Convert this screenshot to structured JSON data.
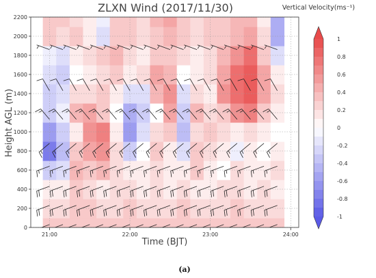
{
  "chart_data": {
    "type": "heatmap",
    "title": "ZLXN Wind (2017/11/30)",
    "colorbar_title": "Vertical Velocity(ms⁻¹)",
    "xlabel": "Time (BJT)",
    "ylabel": "Height AGL (m)",
    "caption": "(a)",
    "x_ticks": [
      "21:00",
      "22:00",
      "23:00",
      "24:00"
    ],
    "y_ticks": [
      "0",
      "200",
      "400",
      "600",
      "800",
      "1000",
      "1200",
      "1400",
      "1600",
      "1800",
      "2000",
      "2200"
    ],
    "xlim": [
      "20:46",
      "24:06"
    ],
    "ylim": [
      0,
      2200
    ],
    "colorbar_ticks": [
      "1",
      "0.8",
      "0.6",
      "0.4",
      "0.2",
      "0",
      "-0.2",
      "-0.4",
      "-0.6",
      "-0.8",
      "-1"
    ],
    "colorbar_range": [
      -1,
      1
    ],
    "grid": true,
    "colors": {
      "negative": "#5a5ae6",
      "neutral": "#ffffff",
      "positive": "#e84a4a"
    },
    "times": [
      "21:00",
      "21:10",
      "21:20",
      "21:30",
      "21:40",
      "21:50",
      "22:00",
      "22:10",
      "22:20",
      "22:30",
      "22:40",
      "22:50",
      "23:00",
      "23:10",
      "23:20",
      "23:30",
      "23:40",
      "23:50"
    ],
    "heights": [
      0,
      200,
      400,
      600,
      800,
      1000,
      1200,
      1400,
      1600,
      1800,
      2000,
      2200
    ],
    "vertical_velocity": [
      [
        0.3,
        0.3,
        0.3,
        0.3,
        0.3,
        0.3,
        0.3,
        0.3,
        0.3,
        0.3,
        0.3,
        0.3,
        0.3,
        0.3,
        0.3,
        0.3,
        0.3,
        0.3
      ],
      [
        0.2,
        0.2,
        0.3,
        0.3,
        0.2,
        0.2,
        0.3,
        0.2,
        0.2,
        0.2,
        0.3,
        0.2,
        0.2,
        0.2,
        0.3,
        0.2,
        0.2,
        0.2
      ],
      [
        0.1,
        0.1,
        0.3,
        0.2,
        0.1,
        0.2,
        0.2,
        0.1,
        0.2,
        0.1,
        0.2,
        0.1,
        0.1,
        0.2,
        0.2,
        0.1,
        0.2,
        0.1
      ],
      [
        -0.3,
        -0.2,
        0.4,
        0.3,
        0.4,
        0.2,
        0.1,
        0.1,
        0.2,
        0.1,
        0.1,
        0.3,
        0.1,
        0.0,
        0.2,
        0.1,
        0.1,
        0.2
      ],
      [
        -0.8,
        -0.4,
        0.3,
        0.5,
        0.6,
        0.2,
        -0.3,
        0.0,
        0.3,
        0.1,
        -0.2,
        0.3,
        0.2,
        0.1,
        -0.1,
        0.1,
        0.0,
        0.1
      ],
      [
        -0.6,
        -0.3,
        0.1,
        0.6,
        0.7,
        0.1,
        -0.6,
        -0.2,
        0.2,
        0.3,
        -0.4,
        0.2,
        0.3,
        0.2,
        0.1,
        0.2,
        0.1,
        0.0
      ],
      [
        -0.3,
        -0.1,
        0.4,
        0.5,
        0.3,
        0.0,
        -0.5,
        -0.3,
        0.0,
        0.5,
        -0.3,
        0.4,
        0.2,
        0.3,
        0.6,
        0.7,
        0.3,
        0.1
      ],
      [
        -0.3,
        -0.2,
        0.2,
        0.2,
        0.3,
        0.1,
        -0.2,
        -0.2,
        0.4,
        0.6,
        -0.2,
        0.2,
        0.1,
        0.6,
        0.8,
        0.9,
        0.5,
        0.2
      ],
      [
        -0.2,
        -0.3,
        0.0,
        0.1,
        0.2,
        0.3,
        0.1,
        0.2,
        0.5,
        0.4,
        0.0,
        0.1,
        0.2,
        0.5,
        0.8,
        0.9,
        0.5,
        0.1
      ],
      [
        -0.1,
        -0.2,
        0.1,
        0.2,
        0.3,
        0.4,
        0.2,
        0.1,
        0.3,
        0.3,
        0.2,
        0.1,
        0.2,
        0.4,
        0.6,
        0.8,
        0.3,
        -0.2
      ],
      [
        0.3,
        0.2,
        0.3,
        0.1,
        -0.2,
        0.3,
        0.3,
        0.2,
        0.3,
        0.4,
        0.3,
        0.2,
        0.3,
        0.3,
        0.4,
        0.5,
        0.2,
        -0.5
      ],
      [
        0.3,
        0.3,
        0.2,
        0.1,
        -0.1,
        0.3,
        0.3,
        0.2,
        0.4,
        0.5,
        0.3,
        0.2,
        0.3,
        0.3,
        0.4,
        0.4,
        0.1,
        -0.5
      ]
    ],
    "barb_levels": [
      {
        "height": 30,
        "speed": 20,
        "direction": 250
      },
      {
        "height": 230,
        "speed": 20,
        "direction": 250
      },
      {
        "height": 430,
        "speed": 20,
        "direction": 250
      },
      {
        "height": 640,
        "speed": 15,
        "direction": 250
      },
      {
        "height": 880,
        "speed": 15,
        "direction": 230
      },
      {
        "height": 1130,
        "speed": 15,
        "direction": 320
      },
      {
        "height": 1430,
        "speed": 10,
        "direction": 330
      },
      {
        "height": 1860,
        "speed": 5,
        "direction": 290
      }
    ]
  }
}
